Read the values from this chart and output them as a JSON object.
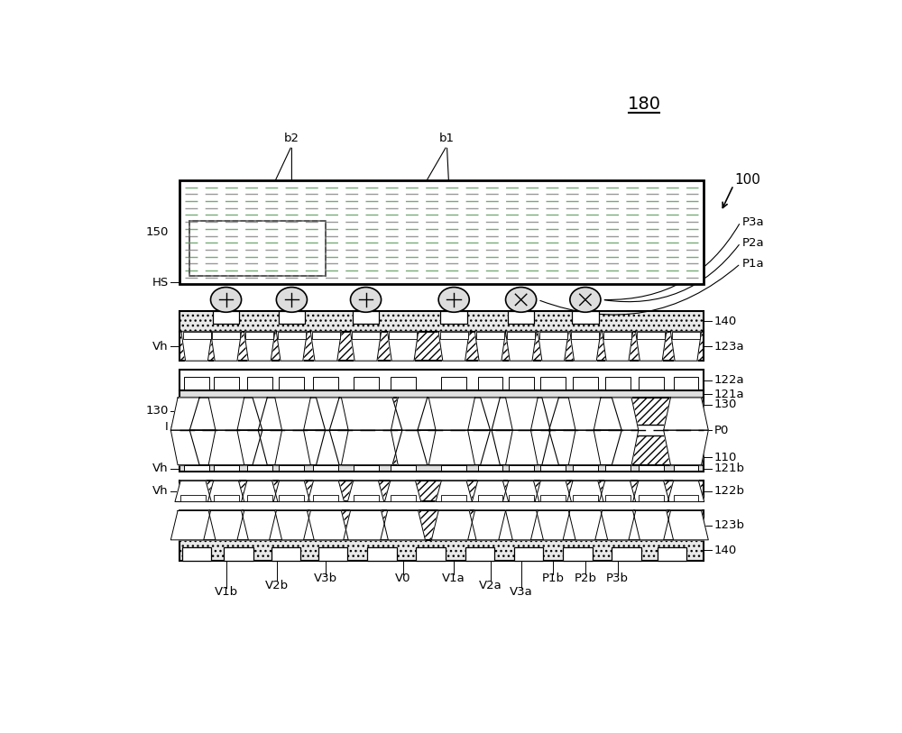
{
  "title": "180",
  "label_100": "100",
  "label_150": "150",
  "label_HS": "HS",
  "label_140a": "140",
  "label_123a": "123a",
  "label_122a": "122a",
  "label_121a": "121a",
  "label_130": "130",
  "label_I": "I",
  "label_P0": "P0",
  "label_110": "110",
  "label_121b": "121b",
  "label_Vh_top": "Vh",
  "label_Vh_mid": "Vh",
  "label_Vh_bot": "Vh",
  "label_122b": "122b",
  "label_123b": "123b",
  "label_140b": "140",
  "label_b1": "b1",
  "label_b2": "b2",
  "label_P3a": "P3a",
  "label_P2a": "P2a",
  "label_P1a": "P1a",
  "label_P1b": "P1b",
  "label_P2b": "P2b",
  "label_P3b": "P3b",
  "label_V0": "V0",
  "label_V1a": "V1a",
  "label_V2a": "V2a",
  "label_V3a": "V3a",
  "label_V1b": "V1b",
  "label_V2b": "V2b",
  "label_V3b": "V3b",
  "bg_color": "white"
}
